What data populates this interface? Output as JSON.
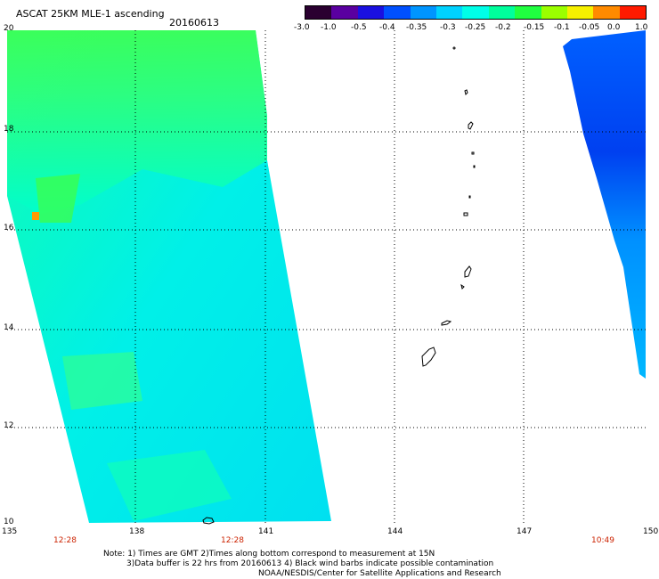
{
  "header": {
    "title": "ASCAT 25KM MLE-1 ascending",
    "date": "20160613"
  },
  "colorbar": {
    "labels": [
      "-3.0",
      "-1.0",
      "-0.5",
      "-0.4",
      "-0.35",
      "-0.3",
      "-0.25",
      "-0.2",
      "-0.15",
      "-0.1",
      "-0.05",
      "0.0",
      "1.0"
    ],
    "colors": [
      "#2a0030",
      "#5a00a0",
      "#1a10e0",
      "#0050ff",
      "#0095ff",
      "#00d2ff",
      "#00ffe8",
      "#00ff9c",
      "#20ff40",
      "#9bff00",
      "#f6f000",
      "#ff8a00",
      "#ff1a00"
    ]
  },
  "axes": {
    "lon_labels": [
      "135",
      "138",
      "141",
      "144",
      "147",
      "150"
    ],
    "lat_labels": [
      "20",
      "18",
      "16",
      "14",
      "12",
      "10"
    ]
  },
  "times": [
    "12:28",
    "12:28",
    "10:49"
  ],
  "notes": {
    "line1": "Note: 1) Times are GMT 2)Times along bottom correspond to measurement at 15N",
    "line2": "3)Data buffer is 22 hrs from 20160613 4) Black wind barbs indicate possible contamination",
    "line3": "NOAA/NESDIS/Center for Satellite Applications and Research"
  }
}
